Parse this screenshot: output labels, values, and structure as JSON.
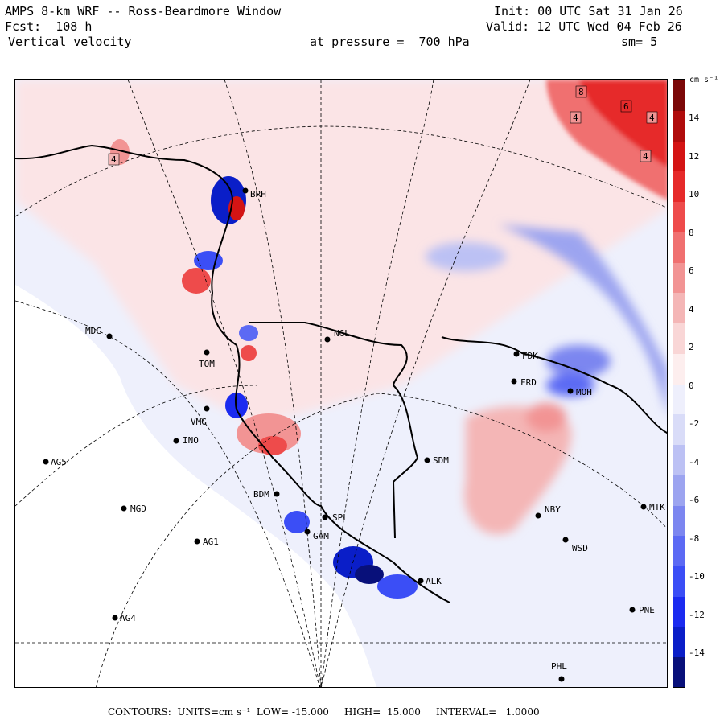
{
  "header": {
    "title": "AMPS 8-km WRF -- Ross-Beardmore Window",
    "forecast": "Fcst:  108 h",
    "field": "Vertical velocity",
    "init": "Init: 00 UTC Sat 31 Jan 26",
    "valid": "Valid: 12 UTC Wed 04 Feb 26",
    "pressure": "at pressure =  700 hPa",
    "smoothing": "sm= 5"
  },
  "colorbar": {
    "units": "cm s⁻¹",
    "ticks": [
      "14",
      "12",
      "10",
      "8",
      "6",
      "4",
      "2",
      "0",
      "-2",
      "-4",
      "-6",
      "-8",
      "-10",
      "-12",
      "-14"
    ],
    "colors": [
      "#08107a",
      "#0a1ec8",
      "#1b2bf0",
      "#3b4ef6",
      "#5c6af4",
      "#7c86f0",
      "#9ca4f0",
      "#bcc1f4",
      "#d9dcf8",
      "#eeeffc",
      "#fdeeee",
      "#f9d6d6",
      "#f4b6b6",
      "#f29494",
      "#f07070",
      "#ee4b4b",
      "#e62a2a",
      "#d41414",
      "#b00c0c",
      "#7c0808"
    ]
  },
  "contour_labels": [
    "4",
    "8",
    "6",
    "4",
    "4",
    "4"
  ],
  "stations": [
    {
      "id": "MDC",
      "label": "MDC"
    },
    {
      "id": "NGL",
      "label": "NGL"
    },
    {
      "id": "FDK",
      "label": "FDK"
    },
    {
      "id": "FRD",
      "label": "FRD"
    },
    {
      "id": "MOH",
      "label": "MOH"
    },
    {
      "id": "TOM",
      "label": "TOM"
    },
    {
      "id": "INO",
      "label": "INO"
    },
    {
      "id": "VMG",
      "label": "VMG"
    },
    {
      "id": "AG5",
      "label": "AG5"
    },
    {
      "id": "SDM",
      "label": "SDM"
    },
    {
      "id": "MGD",
      "label": "MGD"
    },
    {
      "id": "NBY",
      "label": "NBY"
    },
    {
      "id": "MTK",
      "label": "MTK"
    },
    {
      "id": "AG1",
      "label": "AG1"
    },
    {
      "id": "WSD",
      "label": "WSD"
    },
    {
      "id": "BDM",
      "label": "BDM"
    },
    {
      "id": "SPL",
      "label": "SPL"
    },
    {
      "id": "GAM",
      "label": "GAM"
    },
    {
      "id": "ALK",
      "label": "ALK"
    },
    {
      "id": "PNE",
      "label": "PNE"
    },
    {
      "id": "AG4",
      "label": "AG4"
    },
    {
      "id": "PHL",
      "label": "PHL"
    },
    {
      "id": "BRH",
      "label": "BRH"
    }
  ],
  "footer": {
    "contours": "CONTOURS:  UNITS=cm s⁻¹  LOW= -15.000     HIGH=  15.000     INTERVAL=   1.0000"
  }
}
